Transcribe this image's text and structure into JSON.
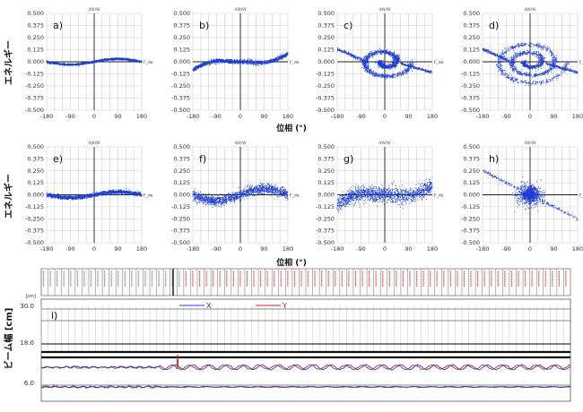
{
  "row_label_ylabel": "エネルギー",
  "row_label_xlabel": "位相 (°)",
  "beam_ylabel": "ビーム幅 [cm]",
  "chart_data": [
    {
      "type": "scatter",
      "panel": "a)",
      "title": "dW/W",
      "xlim": [
        -180,
        180
      ],
      "ylim": [
        -0.5,
        0.5
      ],
      "xticks": [
        "-180",
        "-90",
        "0",
        "90",
        "180"
      ],
      "yticks": [
        "0.500",
        "0.375",
        "0.250",
        "0.125",
        "0.000",
        "-0.125",
        "-0.250",
        "-0.375",
        "-0.500"
      ],
      "end_label": "F_de",
      "pattern": {
        "shape": "sine",
        "amplitude": 0.03,
        "thickness": 0.01
      }
    },
    {
      "type": "scatter",
      "panel": "b)",
      "title": "dW/W",
      "xlim": [
        -180,
        180
      ],
      "ylim": [
        -0.5,
        0.5
      ],
      "xticks": [
        "-180",
        "-90",
        "0",
        "90",
        "180"
      ],
      "yticks": [
        "0.500",
        "0.375",
        "0.250",
        "0.125",
        "0.000",
        "-0.125",
        "-0.250",
        "-0.375",
        "-0.500"
      ],
      "end_label": "F_de",
      "pattern": {
        "shape": "s-curve",
        "amplitude": 0.1,
        "thickness": 0.02
      }
    },
    {
      "type": "scatter",
      "panel": "c)",
      "title": "dW/W",
      "xlim": [
        -180,
        180
      ],
      "ylim": [
        -0.5,
        0.5
      ],
      "xticks": [
        "-180",
        "-90",
        "0",
        "90",
        "180"
      ],
      "yticks": [
        "0.500",
        "0.375",
        "0.250",
        "0.125",
        "0.000",
        "-0.125",
        "-0.250",
        "-0.375",
        "-0.500"
      ],
      "end_label": "F_de",
      "pattern": {
        "shape": "spiral",
        "turns": 1.5,
        "radius": 0.22
      }
    },
    {
      "type": "scatter",
      "panel": "d)",
      "title": "dW/W",
      "xlim": [
        -180,
        180
      ],
      "ylim": [
        -0.5,
        0.5
      ],
      "xticks": [
        "-180",
        "-90",
        "0",
        "90",
        "180"
      ],
      "yticks": [
        "0.500",
        "0.375",
        "0.250",
        "0.125",
        "0.000",
        "-0.125",
        "-0.250",
        "-0.375",
        "-0.500"
      ],
      "end_label": "F_deg",
      "pattern": {
        "shape": "spiral",
        "turns": 2.5,
        "radius": 0.3
      }
    },
    {
      "type": "scatter",
      "panel": "e)",
      "title": "dW/W",
      "xlim": [
        -180,
        180
      ],
      "ylim": [
        -0.5,
        0.5
      ],
      "xticks": [
        "-180",
        "-90",
        "0",
        "90",
        "180"
      ],
      "yticks": [
        "0.500",
        "0.375",
        "0.250",
        "0.125",
        "0.000",
        "-0.125",
        "-0.250",
        "-0.375",
        "-0.500"
      ],
      "end_label": "F_de",
      "pattern": {
        "shape": "sine",
        "amplitude": 0.03,
        "thickness": 0.02
      }
    },
    {
      "type": "scatter",
      "panel": "f)",
      "title": "dW/W",
      "xlim": [
        -180,
        180
      ],
      "ylim": [
        -0.5,
        0.5
      ],
      "xticks": [
        "-180",
        "-90",
        "0",
        "90",
        "180"
      ],
      "yticks": [
        "0.500",
        "0.375",
        "0.250",
        "0.125",
        "0.000",
        "-0.125",
        "-0.250",
        "-0.375",
        "-0.500"
      ],
      "end_label": "F_de",
      "pattern": {
        "shape": "sine",
        "amplitude": 0.06,
        "thickness": 0.05
      }
    },
    {
      "type": "scatter",
      "panel": "g)",
      "title": "dW/W",
      "xlim": [
        -180,
        180
      ],
      "ylim": [
        -0.5,
        0.5
      ],
      "xticks": [
        "-180",
        "-90",
        "0",
        "90",
        "180"
      ],
      "yticks": [
        "0.500",
        "0.375",
        "0.250",
        "0.125",
        "0.000",
        "-0.125",
        "-0.250",
        "-0.375",
        "-0.500"
      ],
      "end_label": "F_de",
      "pattern": {
        "shape": "s-curve",
        "amplitude": 0.12,
        "thickness": 0.08
      }
    },
    {
      "type": "scatter",
      "panel": "h)",
      "title": "dW/W",
      "xlim": [
        -180,
        180
      ],
      "ylim": [
        -0.5,
        0.5
      ],
      "xticks": [
        "-180",
        "-90",
        "0",
        "90",
        "180"
      ],
      "yticks": [
        "0.500",
        "0.375",
        "0.250",
        "0.125",
        "0.000",
        "-0.125",
        "-0.250",
        "-0.375",
        "-0.500"
      ],
      "end_label": "F_deg",
      "pattern": {
        "shape": "blob",
        "radius": 0.11,
        "tail": true
      }
    },
    {
      "type": "line",
      "panel": "i)",
      "xlabel": "",
      "ylabel": "ビーム幅 [cm]",
      "y_unit_label": "[cm]",
      "yticks": [
        "30.0",
        "18.0",
        "6.0"
      ],
      "series": [
        {
          "name": "X",
          "color": "#1f3fcf"
        },
        {
          "name": "Y",
          "color": "#cc2020"
        }
      ]
    }
  ]
}
